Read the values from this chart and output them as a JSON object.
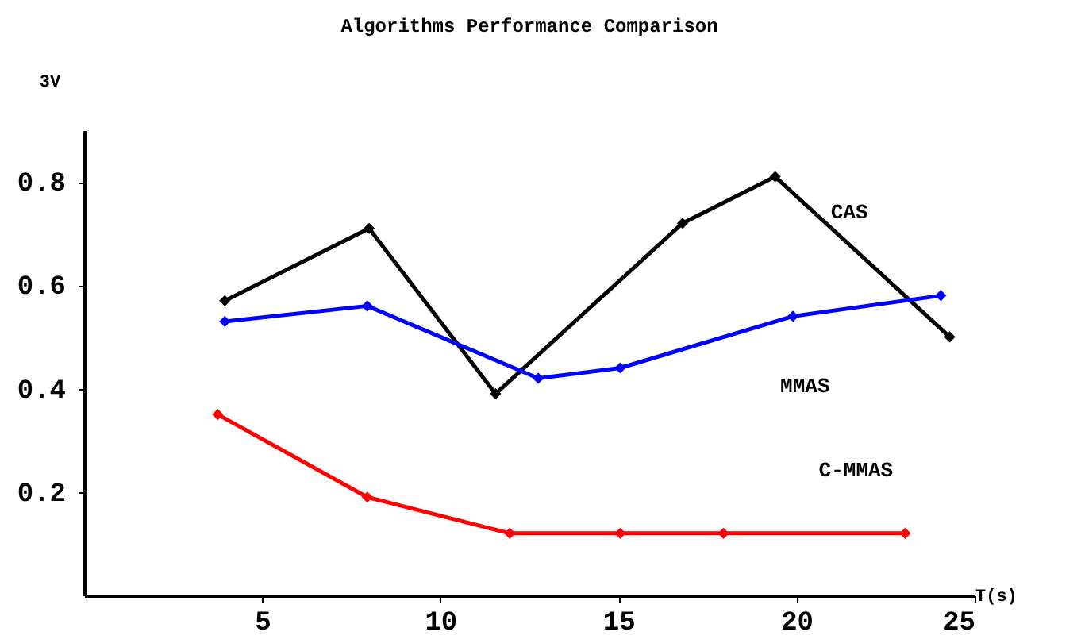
{
  "chart_data": {
    "type": "line",
    "title": "Algorithms Performance Comparison",
    "xlabel": "T(s)",
    "ylabel": "3V",
    "xlim": [
      0,
      25
    ],
    "ylim": [
      0,
      0.9
    ],
    "xticks": [
      5,
      10,
      15,
      20,
      25
    ],
    "yticks": [
      0.2,
      0.4,
      0.6,
      0.8
    ],
    "grid": false,
    "legend": false,
    "marker": "diamond",
    "line_style": "solid",
    "series": [
      {
        "name": "CAS",
        "color": "#000000",
        "x": [
          3.95,
          8,
          11.55,
          16.8,
          19.4,
          24.3
        ],
        "values": [
          0.57,
          0.71,
          0.39,
          0.72,
          0.81,
          0.5
        ]
      },
      {
        "name": "MMAS",
        "color": "#0000ff",
        "x": [
          3.95,
          7.95,
          12.75,
          15.05,
          19.9,
          24.05
        ],
        "values": [
          0.53,
          0.56,
          0.42,
          0.44,
          0.54,
          0.58
        ]
      },
      {
        "name": "C-MMAS",
        "color": "#ff0000",
        "x": [
          3.75,
          7.95,
          11.95,
          15.05,
          17.95,
          23.05
        ],
        "values": [
          0.35,
          0.19,
          0.12,
          0.12,
          0.12,
          0.12
        ]
      }
    ]
  }
}
